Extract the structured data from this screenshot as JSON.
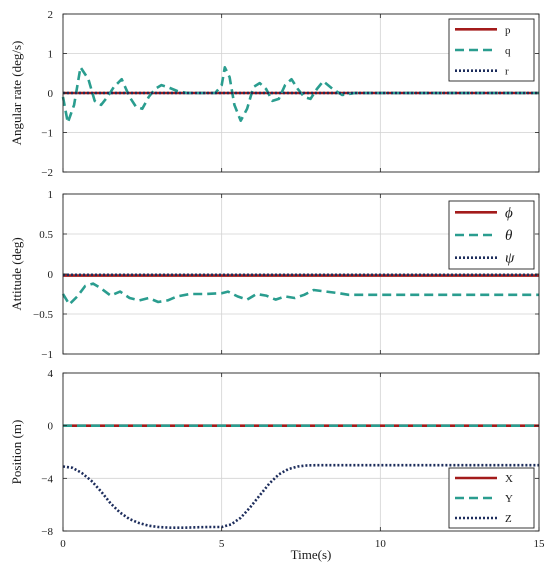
{
  "chart_data": [
    {
      "type": "line",
      "ylabel": "Angular rate (deg/s)",
      "xlabel": "",
      "xlim": [
        0,
        15
      ],
      "ylim": [
        -2,
        2
      ],
      "xticks": [
        0,
        5,
        10,
        15
      ],
      "yticks": [
        -2,
        -1,
        0,
        1,
        2
      ],
      "xtick_labels": [
        "",
        "",
        "",
        ""
      ],
      "ytick_labels": [
        "−2",
        "−1",
        "0",
        "1",
        "2"
      ],
      "grid": true,
      "legend_placement": "top-right",
      "series": [
        {
          "name": "p",
          "color": "#a31b1b",
          "style": "solid",
          "x": [
            0,
            15
          ],
          "y": [
            0,
            0
          ]
        },
        {
          "name": "q",
          "color": "#2a9d8f",
          "style": "dashed",
          "x": [
            0,
            0.15,
            0.35,
            0.55,
            0.8,
            1.0,
            1.2,
            1.4,
            1.6,
            1.85,
            2.1,
            2.3,
            2.5,
            2.7,
            2.9,
            3.1,
            3.3,
            3.6,
            3.9,
            4.3,
            4.8,
            5.0,
            5.1,
            5.25,
            5.4,
            5.6,
            5.8,
            6.0,
            6.2,
            6.4,
            6.6,
            6.8,
            7.0,
            7.2,
            7.4,
            7.6,
            7.8,
            8.0,
            8.2,
            8.5,
            8.8,
            9.2,
            10,
            15
          ],
          "y": [
            -0.1,
            -0.75,
            -0.3,
            0.65,
            0.35,
            -0.2,
            -0.3,
            -0.1,
            0.15,
            0.35,
            -0.1,
            -0.35,
            -0.4,
            -0.1,
            0.1,
            0.2,
            0.15,
            0.05,
            0.0,
            0.0,
            0.0,
            0.2,
            0.65,
            0.4,
            -0.3,
            -0.7,
            -0.4,
            0.15,
            0.25,
            0.1,
            -0.2,
            -0.15,
            0.2,
            0.35,
            0.1,
            -0.1,
            -0.15,
            0.1,
            0.3,
            0.1,
            -0.05,
            0.0,
            0.0,
            0.0
          ]
        },
        {
          "name": "r",
          "color": "#1d2d5c",
          "style": "dotted",
          "x": [
            0,
            15
          ],
          "y": [
            0,
            0
          ]
        }
      ]
    },
    {
      "type": "line",
      "ylabel": "Attitude (deg)",
      "xlabel": "",
      "xlim": [
        0,
        15
      ],
      "ylim": [
        -1,
        1
      ],
      "xticks": [
        0,
        5,
        10,
        15
      ],
      "yticks": [
        -1,
        -0.5,
        0,
        0.5,
        1
      ],
      "xtick_labels": [
        "",
        "",
        "",
        ""
      ],
      "ytick_labels": [
        "−1",
        "−0.5",
        "0",
        "0.5",
        "1"
      ],
      "grid": true,
      "legend_placement": "top-right",
      "series": [
        {
          "name": "ϕ",
          "color": "#a31b1b",
          "style": "solid",
          "x": [
            0,
            15
          ],
          "y": [
            -0.02,
            -0.02
          ]
        },
        {
          "name": "θ",
          "color": "#2a9d8f",
          "style": "dashed",
          "x": [
            0,
            0.2,
            0.45,
            0.7,
            0.95,
            1.2,
            1.5,
            1.8,
            2.1,
            2.4,
            2.7,
            3.0,
            3.3,
            3.6,
            4.0,
            4.5,
            5.0,
            5.2,
            5.5,
            5.8,
            6.1,
            6.4,
            6.7,
            7.0,
            7.3,
            7.6,
            7.9,
            8.3,
            8.7,
            9.0,
            9.5,
            10,
            15
          ],
          "y": [
            -0.25,
            -0.38,
            -0.28,
            -0.15,
            -0.12,
            -0.18,
            -0.27,
            -0.22,
            -0.3,
            -0.33,
            -0.3,
            -0.35,
            -0.33,
            -0.28,
            -0.25,
            -0.25,
            -0.24,
            -0.22,
            -0.28,
            -0.32,
            -0.25,
            -0.27,
            -0.32,
            -0.28,
            -0.3,
            -0.26,
            -0.2,
            -0.22,
            -0.24,
            -0.26,
            -0.26,
            -0.26,
            -0.26
          ]
        },
        {
          "name": "ψ",
          "color": "#1d2d5c",
          "style": "dotted",
          "x": [
            0,
            15
          ],
          "y": [
            -0.01,
            -0.01
          ]
        }
      ]
    },
    {
      "type": "line",
      "ylabel": "Position (m)",
      "xlabel": "Time(s)",
      "xlim": [
        0,
        15
      ],
      "ylim": [
        -8,
        4
      ],
      "xticks": [
        0,
        5,
        10,
        15
      ],
      "yticks": [
        -8,
        -4,
        0,
        4
      ],
      "xtick_labels": [
        "0",
        "5",
        "10",
        "15"
      ],
      "ytick_labels": [
        "−8",
        "−4",
        "0",
        "4"
      ],
      "grid": true,
      "legend_placement": "bottom-right",
      "series": [
        {
          "name": "X",
          "color": "#a31b1b",
          "style": "solid",
          "x": [
            0,
            15
          ],
          "y": [
            0,
            0
          ]
        },
        {
          "name": "Y",
          "color": "#2a9d8f",
          "style": "dashed",
          "x": [
            0,
            15
          ],
          "y": [
            0,
            0
          ]
        },
        {
          "name": "Z",
          "color": "#1d2d5c",
          "style": "dotted",
          "x": [
            0,
            0.3,
            0.6,
            0.9,
            1.2,
            1.5,
            1.8,
            2.1,
            2.4,
            2.7,
            3.0,
            3.4,
            3.8,
            4.2,
            4.6,
            5.0,
            5.3,
            5.6,
            5.9,
            6.2,
            6.5,
            6.8,
            7.1,
            7.4,
            7.7,
            8.0,
            8.5,
            9.0,
            10,
            12,
            15
          ],
          "y": [
            -3.1,
            -3.2,
            -3.6,
            -4.2,
            -5.0,
            -5.9,
            -6.6,
            -7.1,
            -7.4,
            -7.6,
            -7.7,
            -7.75,
            -7.75,
            -7.72,
            -7.7,
            -7.7,
            -7.5,
            -7.0,
            -6.2,
            -5.3,
            -4.4,
            -3.7,
            -3.3,
            -3.1,
            -3.02,
            -3.0,
            -3.0,
            -3.0,
            -3.0,
            -3.0,
            -3.0
          ]
        }
      ]
    }
  ]
}
